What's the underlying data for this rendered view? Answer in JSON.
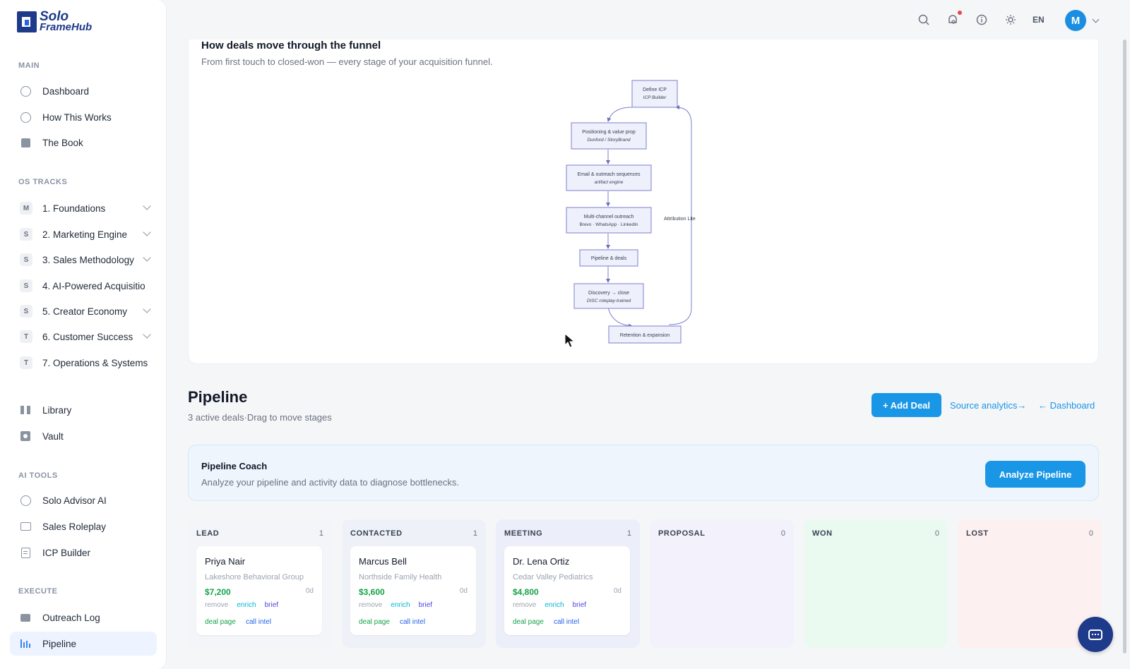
{
  "brand": {
    "line1": "Solo",
    "line2": "FrameHub",
    "color": "#1e3a8a"
  },
  "sidebar": {
    "sections": {
      "main": "MAIN",
      "os_tracks": "OS TRACKS",
      "ai_tools": "AI TOOLS",
      "execute": "EXECUTE"
    },
    "main_items": [
      {
        "label": "Dashboard",
        "icon": "clock-icon"
      },
      {
        "label": "How This Works",
        "icon": "info-icon"
      },
      {
        "label": "The Book",
        "icon": "book-icon"
      }
    ],
    "tracks": [
      {
        "badge": "M",
        "label": "1. Foundations"
      },
      {
        "badge": "S",
        "label": "2. Marketing Engine"
      },
      {
        "badge": "S",
        "label": "3. Sales Methodology"
      },
      {
        "badge": "S",
        "label": "4. AI-Powered Acquisitio"
      },
      {
        "badge": "S",
        "label": "5. Creator Economy"
      },
      {
        "badge": "T",
        "label": "6. Customer Success"
      },
      {
        "badge": "T",
        "label": "7. Operations & Systems"
      }
    ],
    "library_items": [
      {
        "label": "Library",
        "icon": "library-icon"
      },
      {
        "label": "Vault",
        "icon": "vault-icon"
      }
    ],
    "ai_items": [
      {
        "label": "Solo Advisor AI",
        "icon": "advisor-icon"
      },
      {
        "label": "Sales Roleplay",
        "icon": "monitor-icon"
      },
      {
        "label": "ICP Builder",
        "icon": "document-icon"
      }
    ],
    "execute_items": [
      {
        "label": "Outreach Log",
        "icon": "mail-icon"
      },
      {
        "label": "Pipeline",
        "icon": "bar-chart-icon",
        "active": true
      }
    ]
  },
  "topbar": {
    "language": "EN",
    "avatar_initial": "M"
  },
  "funnel": {
    "title": "How deals move through the funnel",
    "subtitle": "From first touch to closed-won — every stage of your acquisition funnel.",
    "nodes": [
      {
        "title": "Define ICP",
        "sub": "ICP Builder"
      },
      {
        "title": "Positioning & value prop",
        "sub": "Dunford / StoryBrand"
      },
      {
        "title": "Email & outreach sequences",
        "sub": "artifact engine"
      },
      {
        "title": "Multi-channel outreach",
        "sub": "Brevo · WhatsApp · LinkedIn"
      },
      {
        "title": "Pipeline & deals",
        "sub": ""
      },
      {
        "title": "Discovery → close",
        "sub": "DISC roleplay-trained"
      },
      {
        "title": "Retention & expansion",
        "sub": ""
      }
    ],
    "loop_label": "Attribution Lite"
  },
  "pipeline": {
    "title": "Pipeline",
    "subtitle": "3 active deals·Drag to move stages",
    "add_button": "+ Add Deal",
    "source_link": "Source analytics→",
    "dashboard_link": "← Dashboard"
  },
  "coach": {
    "title": "Pipeline Coach",
    "subtitle": "Analyze your pipeline and activity data to diagnose bottlenecks.",
    "button": "Analyze Pipeline"
  },
  "columns": [
    {
      "name": "LEAD",
      "count": "1",
      "bg": "#f3f5f8"
    },
    {
      "name": "CONTACTED",
      "count": "1",
      "bg": "#eef2f8"
    },
    {
      "name": "MEETING",
      "count": "1",
      "bg": "#eceef9"
    },
    {
      "name": "PROPOSAL",
      "count": "0",
      "bg": "#f3f1fb"
    },
    {
      "name": "WON",
      "count": "0",
      "bg": "#eafaf1"
    },
    {
      "name": "LOST",
      "count": "0",
      "bg": "#fdf0f0"
    }
  ],
  "deals": [
    {
      "name": "Priya Nair",
      "org": "Lakeshore Behavioral Group",
      "amount": "$7,200",
      "age": "0d"
    },
    {
      "name": "Marcus Bell",
      "org": "Northside Family Health",
      "amount": "$3,600",
      "age": "0d"
    },
    {
      "name": "Dr. Lena Ortiz",
      "org": "Cedar Valley Pediatrics",
      "amount": "$4,800",
      "age": "0d"
    }
  ],
  "deal_actions": {
    "remove": "remove",
    "enrich": "enrich",
    "brief": "brief",
    "deal_page": "deal page",
    "call_intel": "call intel"
  }
}
